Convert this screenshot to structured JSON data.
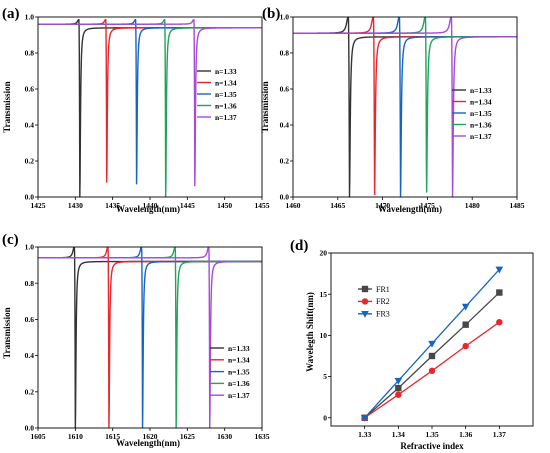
{
  "colors": {
    "n133": "#333333",
    "n134": "#e8262b",
    "n135": "#1565c0",
    "n136": "#1fa45a",
    "n137": "#a64ad8",
    "fr1": "#474747",
    "fr2": "#e8262b",
    "fr3": "#1565c0"
  },
  "chart_data": [
    {
      "type": "line",
      "panel_label": "(a)",
      "xlabel": "Wavelength(nm)",
      "ylabel": "Transmission",
      "xlim": [
        1425,
        1455
      ],
      "ylim": [
        0,
        1.0
      ],
      "xticks": [
        "1425",
        "1430",
        "1435",
        "1440",
        "1445",
        "1450",
        "1455"
      ],
      "yticks": [
        "0.0",
        "0.2",
        "0.4",
        "0.6",
        "0.8",
        "1.0"
      ],
      "legend_position": "center-right",
      "series": [
        {
          "name": "n=1.33",
          "color_key": "n133",
          "resonance_nm": 1430.6,
          "min_transmission": 0.0,
          "peak_transmission": 0.985,
          "baseline": 0.94
        },
        {
          "name": "n=1.34",
          "color_key": "n134",
          "resonance_nm": 1434.2,
          "min_transmission": 0.08,
          "peak_transmission": 0.985,
          "baseline": 0.94
        },
        {
          "name": "n=1.35",
          "color_key": "n135",
          "resonance_nm": 1438.2,
          "min_transmission": 0.07,
          "peak_transmission": 0.985,
          "baseline": 0.94
        },
        {
          "name": "n=1.36",
          "color_key": "n136",
          "resonance_nm": 1442.1,
          "min_transmission": 0.0,
          "peak_transmission": 0.985,
          "baseline": 0.94
        },
        {
          "name": "n=1.37",
          "color_key": "n137",
          "resonance_nm": 1446.0,
          "min_transmission": 0.06,
          "peak_transmission": 0.985,
          "baseline": 0.94
        }
      ]
    },
    {
      "type": "line",
      "panel_label": "(b)",
      "xlabel": "Wavelength(nm)",
      "ylabel": "Transmission",
      "xlim": [
        1460,
        1485
      ],
      "ylim": [
        0,
        1.0
      ],
      "xticks": [
        "1460",
        "1465",
        "1470",
        "1475",
        "1480",
        "1485"
      ],
      "yticks": [
        "0.0",
        "0.2",
        "0.4",
        "0.6",
        "0.8",
        "1.0"
      ],
      "legend_position": "center-right",
      "series": [
        {
          "name": "n=1.33",
          "color_key": "n133",
          "resonance_nm": 1466.3,
          "min_transmission": 0.0,
          "peak_transmission": 1.0,
          "baseline": 0.89
        },
        {
          "name": "n=1.34",
          "color_key": "n134",
          "resonance_nm": 1469.1,
          "min_transmission": 0.0,
          "peak_transmission": 1.0,
          "baseline": 0.89
        },
        {
          "name": "n=1.35",
          "color_key": "n135",
          "resonance_nm": 1472.0,
          "min_transmission": 0.0,
          "peak_transmission": 1.0,
          "baseline": 0.89
        },
        {
          "name": "n=1.36",
          "color_key": "n136",
          "resonance_nm": 1474.9,
          "min_transmission": 0.0,
          "peak_transmission": 1.0,
          "baseline": 0.89
        },
        {
          "name": "n=1.37",
          "color_key": "n137",
          "resonance_nm": 1477.8,
          "min_transmission": 0.0,
          "peak_transmission": 1.0,
          "baseline": 0.89
        }
      ]
    },
    {
      "type": "line",
      "panel_label": "(c)",
      "xlabel": "Wavelength(nm)",
      "ylabel": "Transmission",
      "xlim": [
        1605,
        1635
      ],
      "ylim": [
        0,
        1.0
      ],
      "xticks": [
        "1605",
        "1610",
        "1615",
        "1620",
        "1625",
        "1630",
        "1635"
      ],
      "yticks": [
        "0.0",
        "0.2",
        "0.4",
        "0.6",
        "0.8",
        "1.0"
      ],
      "legend_position": "bottom-right",
      "series": [
        {
          "name": "n=1.33",
          "color_key": "n133",
          "resonance_nm": 1610.0,
          "min_transmission": 0.0,
          "peak_transmission": 1.0,
          "baseline": 0.92
        },
        {
          "name": "n=1.34",
          "color_key": "n134",
          "resonance_nm": 1614.5,
          "min_transmission": 0.0,
          "peak_transmission": 1.0,
          "baseline": 0.92
        },
        {
          "name": "n=1.35",
          "color_key": "n135",
          "resonance_nm": 1619.0,
          "min_transmission": 0.0,
          "peak_transmission": 1.0,
          "baseline": 0.92
        },
        {
          "name": "n=1.36",
          "color_key": "n136",
          "resonance_nm": 1623.5,
          "min_transmission": 0.0,
          "peak_transmission": 1.0,
          "baseline": 0.92
        },
        {
          "name": "n=1.37",
          "color_key": "n137",
          "resonance_nm": 1628.0,
          "min_transmission": 0.0,
          "peak_transmission": 1.0,
          "baseline": 0.92
        }
      ]
    },
    {
      "type": "line",
      "panel_label": "(d)",
      "xlabel": "Refractive index",
      "ylabel": "Wavelegth Shift(nm)",
      "xlim": [
        1.32,
        1.38
      ],
      "ylim": [
        -1,
        20
      ],
      "xticks": [
        "1.33",
        "1.34",
        "1.35",
        "1.36",
        "1.37"
      ],
      "yticks": [
        "0",
        "5",
        "10",
        "15",
        "20"
      ],
      "legend_position": "top-left",
      "x": [
        1.33,
        1.34,
        1.35,
        1.36,
        1.37
      ],
      "series": [
        {
          "name": "FR1",
          "color_key": "fr1",
          "marker": "square",
          "values": [
            0,
            3.6,
            7.5,
            11.3,
            15.2
          ]
        },
        {
          "name": "FR2",
          "color_key": "fr2",
          "marker": "circle",
          "values": [
            0,
            2.8,
            5.7,
            8.7,
            11.6
          ]
        },
        {
          "name": "FR3",
          "color_key": "fr3",
          "marker": "triangle-down",
          "values": [
            0,
            4.5,
            9.0,
            13.5,
            18.0
          ]
        }
      ]
    }
  ]
}
